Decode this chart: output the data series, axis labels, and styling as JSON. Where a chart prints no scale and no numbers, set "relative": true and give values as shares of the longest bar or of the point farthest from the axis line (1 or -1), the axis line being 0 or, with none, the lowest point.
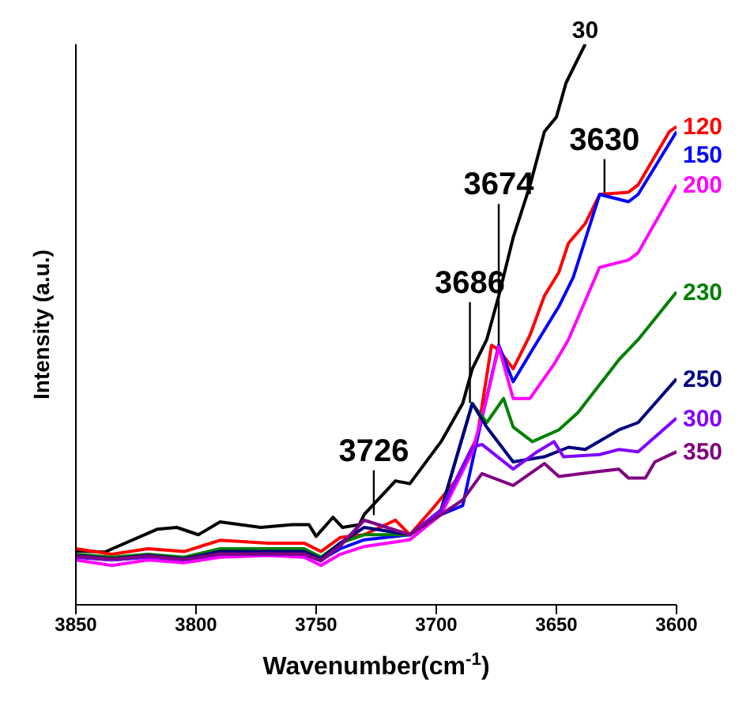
{
  "chart_data": {
    "type": "line",
    "relative": true,
    "xlabel": "Wavenumber(cm$^{-1}$)",
    "ylabel": "Intensity (a.u.)",
    "xlim": [
      3850,
      3600
    ],
    "xticks": [
      3850,
      3800,
      3750,
      3700,
      3650,
      3600
    ],
    "marker": "none",
    "line_style": "solid",
    "annotations": [
      {
        "text": "3726",
        "x": 3726,
        "y": 0.16
      },
      {
        "text": "3686",
        "x": 3686,
        "y": 0.36
      },
      {
        "text": "3674",
        "x": 3674,
        "y": 0.465
      },
      {
        "text": "3630",
        "x": 3630,
        "y": 0.735
      }
    ],
    "series": [
      {
        "name": "30",
        "color": "#000000",
        "x": [
          3850,
          3838,
          3816,
          3808,
          3799,
          3790,
          3773,
          3760,
          3753,
          3750,
          3743,
          3739,
          3732,
          3730,
          3717,
          3711,
          3698,
          3689,
          3685,
          3679,
          3674,
          3668,
          3661,
          3655,
          3650,
          3646,
          3640,
          3638
        ],
        "values": [
          0.096,
          0.094,
          0.135,
          0.138,
          0.125,
          0.148,
          0.138,
          0.143,
          0.143,
          0.122,
          0.156,
          0.138,
          0.143,
          0.161,
          0.221,
          0.216,
          0.291,
          0.359,
          0.421,
          0.473,
          0.551,
          0.655,
          0.748,
          0.844,
          0.87,
          0.931,
          0.983,
          1
        ]
      },
      {
        "name": "120",
        "color": "#ff0000",
        "x": [
          3850,
          3835,
          3820,
          3805,
          3790,
          3770,
          3755,
          3748,
          3740,
          3730,
          3717,
          3711,
          3702,
          3692,
          3683,
          3677,
          3674,
          3668,
          3661,
          3655,
          3649,
          3645,
          3638,
          3632,
          3620,
          3616,
          3603,
          3600
        ],
        "values": [
          0.1,
          0.09,
          0.1,
          0.095,
          0.115,
          0.11,
          0.11,
          0.095,
          0.12,
          0.125,
          0.151,
          0.125,
          0.169,
          0.221,
          0.299,
          0.463,
          0.455,
          0.421,
          0.481,
          0.551,
          0.593,
          0.645,
          0.68,
          0.732,
          0.736,
          0.749,
          0.844,
          0.853
        ]
      },
      {
        "name": "150",
        "color": "#0000ff",
        "x": [
          3850,
          3835,
          3820,
          3805,
          3790,
          3770,
          3755,
          3748,
          3740,
          3730,
          3711,
          3698,
          3689,
          3681,
          3674,
          3668,
          3660,
          3649,
          3643,
          3632,
          3620,
          3616,
          3600
        ],
        "values": [
          0.085,
          0.08,
          0.085,
          0.08,
          0.09,
          0.09,
          0.088,
          0.08,
          0.1,
          0.116,
          0.125,
          0.161,
          0.177,
          0.333,
          0.463,
          0.398,
          0.455,
          0.532,
          0.584,
          0.732,
          0.719,
          0.732,
          0.844
        ]
      },
      {
        "name": "200",
        "color": "#ff00ff",
        "x": [
          3850,
          3835,
          3820,
          3805,
          3790,
          3770,
          3755,
          3748,
          3740,
          3730,
          3711,
          3698,
          3685,
          3679,
          3674,
          3668,
          3661,
          3651,
          3645,
          3632,
          3620,
          3616,
          3600
        ],
        "values": [
          0.08,
          0.07,
          0.08,
          0.075,
          0.085,
          0.088,
          0.085,
          0.07,
          0.09,
          0.104,
          0.116,
          0.161,
          0.273,
          0.368,
          0.46,
          0.368,
          0.368,
          0.429,
          0.473,
          0.602,
          0.615,
          0.628,
          0.749
        ]
      },
      {
        "name": "230",
        "color": "#008000",
        "x": [
          3850,
          3835,
          3820,
          3805,
          3790,
          3770,
          3755,
          3748,
          3740,
          3730,
          3711,
          3698,
          3685,
          3679,
          3672,
          3668,
          3660,
          3649,
          3641,
          3624,
          3616,
          3600
        ],
        "values": [
          0.09,
          0.085,
          0.09,
          0.085,
          0.1,
          0.1,
          0.1,
          0.085,
          0.11,
          0.125,
          0.125,
          0.169,
          0.359,
          0.325,
          0.368,
          0.317,
          0.291,
          0.312,
          0.343,
          0.437,
          0.473,
          0.558
        ]
      },
      {
        "name": "250",
        "color": "#000080",
        "x": [
          3850,
          3835,
          3820,
          3805,
          3790,
          3770,
          3755,
          3748,
          3740,
          3730,
          3711,
          3698,
          3685,
          3679,
          3668,
          3655,
          3645,
          3638,
          3624,
          3616,
          3600
        ],
        "values": [
          0.088,
          0.082,
          0.088,
          0.082,
          0.095,
          0.095,
          0.095,
          0.082,
          0.11,
          0.138,
          0.125,
          0.169,
          0.359,
          0.317,
          0.255,
          0.264,
          0.281,
          0.277,
          0.312,
          0.325,
          0.403
        ]
      },
      {
        "name": "300",
        "color": "#8000ff",
        "x": [
          3850,
          3835,
          3820,
          3805,
          3790,
          3770,
          3755,
          3748,
          3740,
          3730,
          3711,
          3698,
          3685,
          3681,
          3668,
          3658,
          3651,
          3647,
          3632,
          3624,
          3616,
          3600
        ],
        "values": [
          0.086,
          0.08,
          0.086,
          0.08,
          0.09,
          0.09,
          0.09,
          0.078,
          0.105,
          0.151,
          0.125,
          0.169,
          0.281,
          0.286,
          0.242,
          0.273,
          0.291,
          0.264,
          0.268,
          0.277,
          0.273,
          0.333
        ]
      },
      {
        "name": "350",
        "color": "#800080",
        "x": [
          3850,
          3835,
          3820,
          3805,
          3790,
          3770,
          3755,
          3748,
          3740,
          3730,
          3711,
          3698,
          3689,
          3681,
          3668,
          3655,
          3649,
          3632,
          3624,
          3620,
          3613,
          3609,
          3600
        ],
        "values": [
          0.087,
          0.081,
          0.087,
          0.081,
          0.091,
          0.091,
          0.091,
          0.079,
          0.105,
          0.151,
          0.125,
          0.161,
          0.187,
          0.234,
          0.213,
          0.252,
          0.229,
          0.238,
          0.242,
          0.226,
          0.226,
          0.255,
          0.273
        ]
      }
    ]
  }
}
